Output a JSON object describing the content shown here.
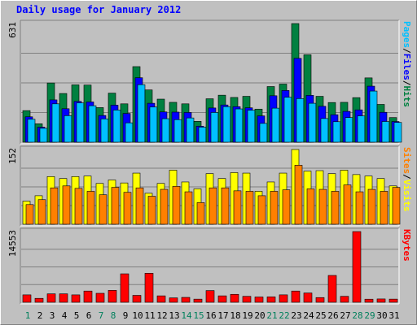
{
  "chart_data": {
    "type": "bar",
    "title": "Daily usage for January 2012",
    "categories": [
      "1",
      "2",
      "3",
      "4",
      "5",
      "6",
      "7",
      "8",
      "9",
      "10",
      "11",
      "12",
      "13",
      "14",
      "15",
      "16",
      "17",
      "18",
      "19",
      "20",
      "21",
      "22",
      "23",
      "24",
      "25",
      "26",
      "27",
      "28",
      "29",
      "30",
      "31"
    ],
    "weekend_days": [
      "1",
      "7",
      "8",
      "14",
      "15",
      "21",
      "22",
      "28",
      "29"
    ],
    "panels": [
      {
        "id": "hits-files-pages",
        "max_label": "631",
        "ylim": [
          0,
          631
        ],
        "legend": [
          "Pages",
          "Files",
          "Hits"
        ],
        "legend_separator": "/",
        "series": [
          {
            "name": "Hits",
            "color": "#008040",
            "values": [
              168,
              98,
              315,
              259,
              305,
              304,
              184,
              261,
              204,
              402,
              278,
              229,
              212,
              204,
              111,
              231,
              250,
              238,
              244,
              176,
              296,
              309,
              631,
              465,
              244,
              211,
              212,
              237,
              342,
              201,
              131
            ]
          },
          {
            "name": "Files",
            "color": "#0000ff",
            "values": [
              135,
              80,
              225,
              178,
              217,
              214,
              142,
              197,
              153,
              343,
              207,
              161,
              160,
              158,
              85,
              182,
              198,
              189,
              183,
              140,
              247,
              275,
              446,
              249,
              191,
              146,
              164,
              172,
              298,
              159,
              110
            ]
          },
          {
            "name": "Pages",
            "color": "#00c0ff",
            "values": [
              122,
              74,
              204,
              141,
              209,
              194,
              124,
              171,
              103,
              306,
              187,
              125,
              120,
              129,
              80,
              158,
              189,
              177,
              170,
              100,
              181,
              239,
              232,
              207,
              126,
              109,
              131,
              140,
              272,
              110,
              105
            ]
          }
        ]
      },
      {
        "id": "visits-sites",
        "max_label": "152",
        "ylim": [
          0,
          152
        ],
        "legend": [
          "Sites",
          "Visits"
        ],
        "legend_separator": "/",
        "series": [
          {
            "name": "Visits",
            "color": "#ffff00",
            "values": [
              47,
              58,
              97,
              93,
              97,
              98,
              83,
              90,
              84,
              104,
              63,
              83,
              110,
              86,
              72,
              103,
              93,
              105,
              104,
              67,
              86,
              104,
              152,
              108,
              109,
              103,
              110,
              101,
              98,
              93,
              78
            ]
          },
          {
            "name": "Sites",
            "color": "#ff8000",
            "values": [
              40,
              50,
              74,
              78,
              73,
              67,
              60,
              75,
              65,
              74,
              57,
              71,
              77,
              66,
              44,
              74,
              74,
              68,
              67,
              58,
              67,
              70,
              120,
              72,
              71,
              67,
              80,
              66,
              71,
              67,
              75
            ]
          }
        ]
      },
      {
        "id": "kbytes",
        "max_label": "14553",
        "ylim": [
          0,
          14553
        ],
        "legend": [
          "KBytes"
        ],
        "legend_separator": "/",
        "series": [
          {
            "name": "KBytes",
            "color": "#ff0000",
            "values": [
              1521,
              801,
              1733,
              1733,
              1520,
              2308,
              1842,
              2446,
              5851,
              1420,
              5964,
              1319,
              902,
              1001,
              641,
              2405,
              1320,
              1629,
              1220,
              1083,
              1109,
              1524,
              2308,
              1913,
              963,
              5521,
              1220,
              14553,
              632,
              681,
              646
            ]
          }
        ]
      }
    ],
    "colors": {
      "weekday_label": "#000000",
      "weekend_label": "#00805c",
      "max_label": "#000000",
      "title": "#0000ff",
      "separator": "#000000"
    }
  }
}
